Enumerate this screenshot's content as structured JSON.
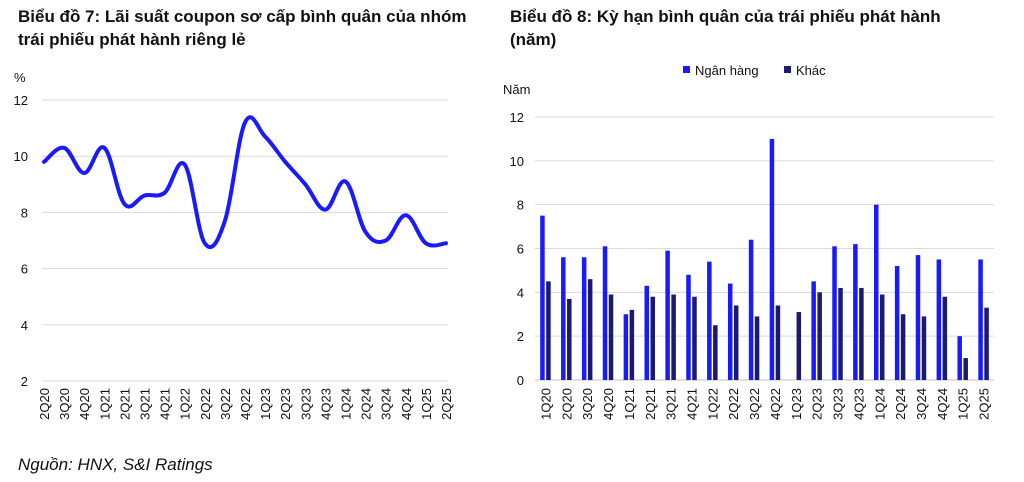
{
  "chart_data": [
    {
      "type": "line",
      "title": "Biểu đồ 7: Lãi suất coupon sơ cấp bình quân của nhóm trái phiếu phát hành riêng lẻ",
      "ylabel": "%",
      "ylim": [
        2,
        12
      ],
      "yticks": [
        "2",
        "4",
        "6",
        "8",
        "10",
        "12"
      ],
      "grid": true,
      "color": "#1a1aff",
      "categories": [
        "2Q20",
        "3Q20",
        "4Q20",
        "1Q21",
        "2Q21",
        "3Q21",
        "4Q21",
        "1Q22",
        "2Q22",
        "3Q22",
        "4Q22",
        "1Q23",
        "2Q23",
        "3Q23",
        "4Q23",
        "1Q24",
        "2Q24",
        "3Q24",
        "4Q24",
        "1Q25",
        "2Q25"
      ],
      "values": [
        9.8,
        10.3,
        9.4,
        10.3,
        8.3,
        8.6,
        8.7,
        9.7,
        6.9,
        7.7,
        11.2,
        10.7,
        9.8,
        9.0,
        8.1,
        9.1,
        7.3,
        7.0,
        7.9,
        6.9,
        6.9
      ]
    },
    {
      "type": "bar",
      "title": "Biểu đồ 8: Kỳ hạn bình quân của trái phiếu phát hành (năm)",
      "ylabel": "Năm",
      "ylim": [
        0,
        12
      ],
      "yticks": [
        "0",
        "2",
        "4",
        "6",
        "8",
        "10",
        "12"
      ],
      "grid": true,
      "legend": "top-center",
      "categories": [
        "1Q20",
        "2Q20",
        "3Q20",
        "4Q20",
        "1Q21",
        "2Q21",
        "3Q21",
        "4Q21",
        "1Q22",
        "2Q22",
        "3Q22",
        "4Q22",
        "1Q23",
        "2Q23",
        "3Q23",
        "4Q23",
        "1Q24",
        "2Q24",
        "3Q24",
        "4Q24",
        "1Q25",
        "2Q25"
      ],
      "series": [
        {
          "name": "Ngân hàng",
          "color": "#1a1aff",
          "values": [
            7.5,
            5.6,
            5.6,
            6.1,
            3.0,
            4.3,
            5.9,
            4.8,
            5.4,
            4.4,
            6.4,
            11.0,
            0,
            4.5,
            6.1,
            6.2,
            8.0,
            5.2,
            5.7,
            5.5,
            2.0,
            5.5
          ]
        },
        {
          "name": "Khác",
          "color": "#1a1a6e",
          "values": [
            4.5,
            3.7,
            4.6,
            3.9,
            3.2,
            3.8,
            3.9,
            3.8,
            2.5,
            3.4,
            2.9,
            3.4,
            3.1,
            4.0,
            4.2,
            4.2,
            3.9,
            3.0,
            2.9,
            3.8,
            1.0,
            3.3
          ]
        }
      ]
    }
  ],
  "source": "Nguồn: HNX, S&I Ratings"
}
